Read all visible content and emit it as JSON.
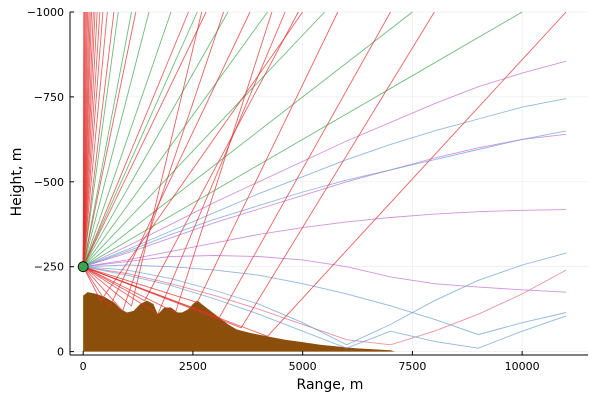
{
  "chart_data": {
    "type": "line",
    "title": "",
    "xlabel": "Range, m",
    "ylabel": "Height, m",
    "xlim": [
      -300,
      11500
    ],
    "ylim": [
      -1000,
      10
    ],
    "y_axis_reversed": true,
    "grid": true,
    "legend": "none",
    "x_ticks": [
      0,
      2500,
      5000,
      7500,
      10000
    ],
    "x_tick_labels": [
      "0",
      "2500",
      "5000",
      "7500",
      "10000"
    ],
    "y_ticks": [
      0,
      -250,
      -500,
      -750,
      -1000
    ],
    "y_tick_labels": [
      "0",
      "−250",
      "−500",
      "−750",
      "−1000"
    ],
    "source": {
      "x": 0,
      "y": -250,
      "color": "#3da44d"
    },
    "seabed": {
      "color": "#8b4f0b",
      "x": [
        0,
        100,
        300,
        500,
        700,
        850,
        1000,
        1150,
        1300,
        1450,
        1600,
        1700,
        1850,
        2000,
        2150,
        2250,
        2400,
        2500,
        2600,
        2750,
        2900,
        3100,
        3300,
        3500,
        3800,
        4200,
        4600,
        5000,
        5400,
        5800,
        6200,
        6600,
        7000,
        7100
      ],
      "y": [
        -165,
        -175,
        -170,
        -160,
        -145,
        -125,
        -115,
        -120,
        -140,
        -150,
        -140,
        -110,
        -130,
        -130,
        -115,
        -115,
        -125,
        -140,
        -150,
        -135,
        -120,
        -100,
        -80,
        -65,
        -55,
        -45,
        -35,
        -28,
        -20,
        -15,
        -10,
        -7,
        -4,
        0
      ]
    },
    "series": [
      {
        "color": "#e26f86",
        "x": [
          0,
          1000,
          2000,
          3000,
          4000,
          5000,
          6000,
          7000,
          8000,
          9000,
          10000,
          11000
        ],
        "y": [
          -250,
          -230,
          -200,
          -165,
          -125,
          -80,
          -35,
          -20,
          -60,
          -110,
          -170,
          -240
        ]
      },
      {
        "color": "#c271d2",
        "x": [
          0,
          1000,
          2000,
          3000,
          4000,
          5000,
          6000,
          7000,
          8000,
          9000,
          10000,
          11000
        ],
        "y": [
          -250,
          -265,
          -280,
          -283,
          -280,
          -270,
          -250,
          -220,
          -200,
          -190,
          -182,
          -175
        ]
      },
      {
        "color": "#c271d2",
        "x": [
          0,
          1000,
          2000,
          3000,
          4000,
          5000,
          6000,
          7000,
          8000,
          9000,
          10000,
          11000
        ],
        "y": [
          -250,
          -270,
          -295,
          -320,
          -345,
          -365,
          -382,
          -395,
          -405,
          -412,
          -416,
          -418
        ]
      },
      {
        "color": "#c271d2",
        "x": [
          0,
          1000,
          2000,
          3000,
          4000,
          5000,
          6000,
          7000,
          8000,
          9000,
          10000,
          11000
        ],
        "y": [
          -250,
          -290,
          -335,
          -380,
          -420,
          -460,
          -500,
          -535,
          -570,
          -600,
          -625,
          -640
        ]
      },
      {
        "color": "#c271d2",
        "x": [
          0,
          1000,
          2000,
          3000,
          4000,
          5000,
          6000,
          7000,
          8000,
          9000,
          10000,
          11000
        ],
        "y": [
          -250,
          -310,
          -375,
          -440,
          -500,
          -560,
          -620,
          -675,
          -730,
          -780,
          -820,
          -855
        ]
      },
      {
        "color": "#6ea0d3",
        "x": [
          0,
          1000,
          2000,
          3000,
          4000,
          5000,
          6000,
          7000,
          8000,
          9000,
          10000,
          11000
        ],
        "y": [
          -250,
          -240,
          -215,
          -180,
          -140,
          -85,
          -20,
          -80,
          -150,
          -210,
          -255,
          -290
        ]
      },
      {
        "color": "#6ea0d3",
        "x": [
          0,
          1000,
          2000,
          3000,
          4000,
          5000,
          6000,
          7000,
          8000,
          9000,
          10000,
          11000
        ],
        "y": [
          -250,
          -225,
          -195,
          -155,
          -110,
          -60,
          -10,
          -60,
          -30,
          -10,
          -60,
          -105
        ]
      },
      {
        "color": "#6ea0d3",
        "x": [
          0,
          1000,
          2000,
          3000,
          4000,
          5000,
          6000,
          7000,
          8000,
          9000,
          10000,
          11000
        ],
        "y": [
          -250,
          -295,
          -345,
          -390,
          -430,
          -470,
          -505,
          -535,
          -565,
          -595,
          -625,
          -650
        ]
      },
      {
        "color": "#6ea0d3",
        "x": [
          0,
          1000,
          2000,
          3000,
          4000,
          5000,
          6000,
          7000,
          8000,
          9000,
          10000,
          11000
        ],
        "y": [
          -250,
          -300,
          -355,
          -410,
          -465,
          -515,
          -565,
          -610,
          -650,
          -685,
          -720,
          -745
        ]
      },
      {
        "color": "#6ea0d3",
        "x": [
          0,
          1000,
          2000,
          3000,
          4000,
          5000,
          6000,
          7000,
          8000,
          9000,
          10000,
          11000
        ],
        "y": [
          -250,
          -255,
          -250,
          -240,
          -225,
          -200,
          -170,
          -135,
          -95,
          -50,
          -85,
          -115
        ]
      },
      {
        "color": "#3da44d",
        "x": [
          0,
          7500
        ],
        "y": [
          -250,
          -1000
        ]
      },
      {
        "color": "#3da44d",
        "x": [
          0,
          10000
        ],
        "y": [
          -250,
          -1000
        ]
      },
      {
        "color": "#3da44d",
        "x": [
          0,
          5500
        ],
        "y": [
          -250,
          -1000
        ]
      },
      {
        "color": "#3da44d",
        "x": [
          0,
          4200
        ],
        "y": [
          -250,
          -1000
        ]
      },
      {
        "color": "#3da44d",
        "x": [
          0,
          3300
        ],
        "y": [
          -250,
          -1000
        ]
      },
      {
        "color": "#3da44d",
        "x": [
          0,
          2600
        ],
        "y": [
          -250,
          -1000
        ]
      },
      {
        "color": "#3da44d",
        "x": [
          0,
          2000
        ],
        "y": [
          -250,
          -1000
        ]
      },
      {
        "color": "#3da44d",
        "x": [
          0,
          1500
        ],
        "y": [
          -250,
          -1000
        ]
      },
      {
        "color": "#3da44d",
        "x": [
          0,
          1100
        ],
        "y": [
          -250,
          -1000
        ]
      },
      {
        "color": "#3da44d",
        "x": [
          0,
          800
        ],
        "y": [
          -250,
          -1000
        ]
      },
      {
        "color": "#e0302e",
        "x": [
          0,
          400,
          5000
        ],
        "y": [
          -250,
          -150,
          -1000
        ]
      },
      {
        "color": "#e0302e",
        "x": [
          0,
          600,
          3800
        ],
        "y": [
          -250,
          -130,
          -1000
        ]
      },
      {
        "color": "#e0302e",
        "x": [
          0,
          900,
          3200
        ],
        "y": [
          -250,
          -120,
          -1000
        ]
      },
      {
        "color": "#e0302e",
        "x": [
          0,
          1100,
          2700
        ],
        "y": [
          -250,
          -135,
          -1000
        ]
      },
      {
        "color": "#e0302e",
        "x": [
          0,
          1400,
          4900
        ],
        "y": [
          -250,
          -150,
          -1000
        ]
      },
      {
        "color": "#e0302e",
        "x": [
          0,
          1700,
          4600
        ],
        "y": [
          -250,
          -110,
          -1000
        ]
      },
      {
        "color": "#e0302e",
        "x": [
          0,
          2100,
          4300
        ],
        "y": [
          -250,
          -115,
          -1000
        ]
      },
      {
        "color": "#e0302e",
        "x": [
          0,
          2600,
          5800
        ],
        "y": [
          -250,
          -145,
          -1000
        ]
      },
      {
        "color": "#e0302e",
        "x": [
          0,
          3100,
          7000
        ],
        "y": [
          -250,
          -100,
          -1000
        ]
      },
      {
        "color": "#e0302e",
        "x": [
          0,
          3600,
          8000
        ],
        "y": [
          -250,
          -70,
          -1000
        ]
      },
      {
        "color": "#e0302e",
        "x": [
          0,
          4200,
          11000
        ],
        "y": [
          -250,
          -45,
          -1000
        ]
      },
      {
        "color": "#e0302e",
        "x": [
          0,
          2800
        ],
        "y": [
          -250,
          -1000
        ]
      },
      {
        "color": "#e0302e",
        "x": [
          0,
          2400
        ],
        "y": [
          -250,
          -1000
        ]
      },
      {
        "color": "#e0302e",
        "x": [
          0,
          1200
        ],
        "y": [
          -250,
          -1000
        ]
      },
      {
        "color": "#e0302e",
        "x": [
          0,
          700
        ],
        "y": [
          -250,
          -1000
        ]
      },
      {
        "color": "#e0302e",
        "x": [
          0,
          550
        ],
        "y": [
          -250,
          -1000
        ]
      },
      {
        "color": "#e0302e",
        "x": [
          0,
          450
        ],
        "y": [
          -250,
          -1000
        ]
      },
      {
        "color": "#e0302e",
        "x": [
          0,
          380
        ],
        "y": [
          -250,
          -1000
        ]
      },
      {
        "color": "#e0302e",
        "x": [
          0,
          320
        ],
        "y": [
          -250,
          -1000
        ]
      },
      {
        "color": "#e0302e",
        "x": [
          0,
          270
        ],
        "y": [
          -250,
          -1000
        ]
      },
      {
        "color": "#e0302e",
        "x": [
          0,
          230
        ],
        "y": [
          -250,
          -1000
        ]
      },
      {
        "color": "#e0302e",
        "x": [
          0,
          190
        ],
        "y": [
          -250,
          -1000
        ]
      },
      {
        "color": "#e0302e",
        "x": [
          0,
          160
        ],
        "y": [
          -250,
          -1000
        ]
      },
      {
        "color": "#e0302e",
        "x": [
          0,
          130
        ],
        "y": [
          -250,
          -1000
        ]
      },
      {
        "color": "#e0302e",
        "x": [
          0,
          100
        ],
        "y": [
          -250,
          -1000
        ]
      },
      {
        "color": "#e0302e",
        "x": [
          0,
          75
        ],
        "y": [
          -250,
          -1000
        ]
      },
      {
        "color": "#e0302e",
        "x": [
          0,
          50
        ],
        "y": [
          -250,
          -1000
        ]
      },
      {
        "color": "#e0302e",
        "x": [
          0,
          30
        ],
        "y": [
          -250,
          -1000
        ]
      },
      {
        "color": "#e0302e",
        "x": [
          0,
          15
        ],
        "y": [
          -250,
          -1000
        ]
      }
    ]
  }
}
